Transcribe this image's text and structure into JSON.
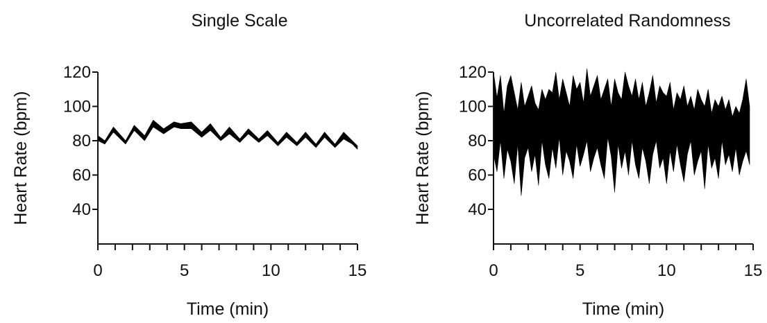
{
  "chart_data": [
    {
      "type": "area",
      "title": "Single Scale",
      "xlabel": "Time (min)",
      "ylabel": "Heart Rate (bpm)",
      "xlim": [
        0,
        15
      ],
      "ylim": [
        20,
        120
      ],
      "x_ticks": [
        0,
        5,
        10,
        15
      ],
      "y_ticks": [
        40,
        60,
        80,
        100,
        120
      ],
      "x_minor_step": 1,
      "series": [
        {
          "x": [
            0,
            0.4,
            0.9,
            1.6,
            2.1,
            2.7,
            3.2,
            3.8,
            4.4,
            4.8,
            5.4,
            6.0,
            6.5,
            7.1,
            7.6,
            8.2,
            8.7,
            9.3,
            9.8,
            10.4,
            10.9,
            11.5,
            12.0,
            12.6,
            13.1,
            13.7,
            14.2,
            14.7,
            15.0
          ],
          "lower": [
            80,
            78,
            85,
            78,
            86,
            80,
            88,
            84,
            88,
            87,
            87,
            82,
            86,
            80,
            84,
            79,
            84,
            79,
            83,
            77,
            82,
            77,
            82,
            76,
            82,
            76,
            81,
            78,
            75
          ],
          "upper": [
            83,
            80,
            88,
            80,
            89,
            83,
            92,
            87,
            91,
            90,
            91,
            85,
            90,
            82,
            88,
            81,
            87,
            81,
            86,
            79,
            85,
            79,
            85,
            78,
            85,
            78,
            85,
            80,
            77
          ]
        }
      ]
    },
    {
      "type": "area",
      "title": "Uncorrelated Randomness",
      "xlabel": "Time (min)",
      "ylabel": "Heart Rate (bpm)",
      "xlim": [
        0,
        15
      ],
      "ylim": [
        20,
        120
      ],
      "x_ticks": [
        0,
        5,
        10,
        15
      ],
      "y_ticks": [
        40,
        60,
        80,
        100,
        120
      ],
      "x_minor_step": 1,
      "series": [
        {
          "x": [
            0,
            0.2,
            0.4,
            0.6,
            0.8,
            1.0,
            1.2,
            1.4,
            1.6,
            1.8,
            2.0,
            2.2,
            2.4,
            2.6,
            2.8,
            3.0,
            3.2,
            3.4,
            3.6,
            3.8,
            4.0,
            4.2,
            4.4,
            4.6,
            4.8,
            5.0,
            5.2,
            5.4,
            5.6,
            5.8,
            6.0,
            6.2,
            6.4,
            6.6,
            6.8,
            7.0,
            7.2,
            7.4,
            7.6,
            7.8,
            8.0,
            8.2,
            8.4,
            8.6,
            8.8,
            9.0,
            9.2,
            9.4,
            9.6,
            9.8,
            10.0,
            10.2,
            10.4,
            10.6,
            10.8,
            11.0,
            11.2,
            11.4,
            11.6,
            11.8,
            12.0,
            12.2,
            12.4,
            12.6,
            12.8,
            13.0,
            13.2,
            13.4,
            13.6,
            13.8,
            14.0,
            14.2,
            14.4,
            14.6,
            14.8
          ],
          "lower": [
            72,
            62,
            80,
            58,
            75,
            68,
            55,
            78,
            48,
            70,
            76,
            62,
            72,
            54,
            80,
            66,
            58,
            76,
            64,
            82,
            60,
            74,
            68,
            58,
            78,
            65,
            72,
            80,
            62,
            70,
            76,
            66,
            58,
            82,
            71,
            50,
            78,
            64,
            74,
            60,
            80,
            66,
            58,
            76,
            68,
            55,
            72,
            80,
            64,
            70,
            55,
            74,
            62,
            78,
            66,
            56,
            72,
            80,
            60,
            68,
            74,
            52,
            78,
            64,
            70,
            58,
            80,
            66,
            72,
            62,
            76,
            60,
            68,
            74,
            66
          ],
          "upper": [
            120,
            105,
            118,
            96,
            112,
            118,
            108,
            98,
            114,
            100,
            106,
            112,
            102,
            98,
            110,
            104,
            110,
            108,
            120,
            104,
            116,
            108,
            100,
            118,
            110,
            114,
            102,
            122,
            106,
            112,
            118,
            104,
            110,
            116,
            100,
            116,
            108,
            104,
            120,
            112,
            106,
            116,
            104,
            114,
            100,
            108,
            118,
            102,
            112,
            108,
            106,
            114,
            98,
            108,
            104,
            112,
            100,
            106,
            98,
            110,
            104,
            100,
            110,
            96,
            104,
            100,
            106,
            98,
            104,
            94,
            100,
            96,
            104,
            116,
            100
          ]
        }
      ]
    }
  ]
}
